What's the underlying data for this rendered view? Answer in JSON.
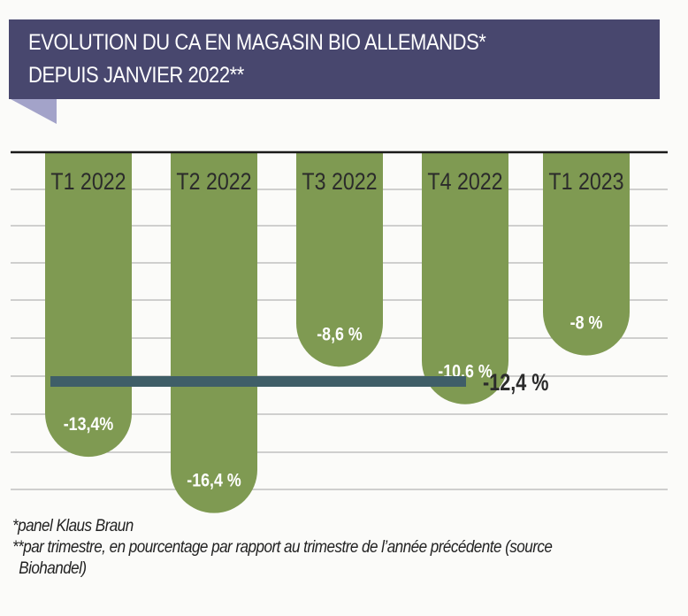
{
  "header": {
    "title_line1": "EVOLUTION DU CA EN MAGASIN BIO ALLEMANDS*",
    "title_line2": "DEPUIS JANVIER 2022**"
  },
  "colors": {
    "banner": "#48476e",
    "banner_fold": "#a3a3c9",
    "bar": "#7f9a52",
    "average_line": "#3f5e68",
    "bar_label_text": "#ffffff",
    "category_text": "#2b2b2b",
    "gridline": "#b5b5b5",
    "baseline": "#1a1a1a"
  },
  "chart_data": {
    "type": "bar",
    "orientation": "vertical-downward",
    "title": "EVOLUTION DU CA EN MAGASIN BIO ALLEMANDS* DEPUIS JANVIER 2022**",
    "xlabel": "",
    "ylabel": "",
    "categories": [
      "T1 2022",
      "T2 2022",
      "T3 2022",
      "T4 2022",
      "T1 2023"
    ],
    "values": [
      -13.4,
      -16.4,
      -8.6,
      -10.6,
      -8
    ],
    "value_labels": [
      "-13,4%",
      "-16,4 %",
      "-8,6 %",
      "-10,6 %",
      "-8 %"
    ],
    "unit": "%",
    "reference_line": {
      "value": -12.4,
      "label": "-12,4 %",
      "spans_categories": [
        "T1 2022",
        "T2 2022",
        "T3 2022",
        "T4 2022"
      ]
    },
    "ylim": [
      -20,
      0
    ],
    "grid": true,
    "legend": "none"
  },
  "footnotes": {
    "note1": "*panel Klaus Braun",
    "note2": "**par trimestre, en pourcentage par rapport au trimestre de l’année précédente (source",
    "note2_cont": "Biohandel)"
  }
}
